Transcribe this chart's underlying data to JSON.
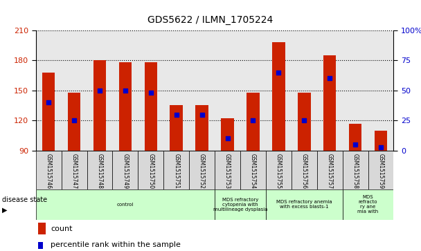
{
  "title": "GDS5622 / ILMN_1705224",
  "samples": [
    "GSM1515746",
    "GSM1515747",
    "GSM1515748",
    "GSM1515749",
    "GSM1515750",
    "GSM1515751",
    "GSM1515752",
    "GSM1515753",
    "GSM1515754",
    "GSM1515755",
    "GSM1515756",
    "GSM1515757",
    "GSM1515758",
    "GSM1515759"
  ],
  "counts": [
    168,
    148,
    180,
    178,
    178,
    135,
    135,
    122,
    148,
    198,
    148,
    185,
    117,
    110
  ],
  "percentiles": [
    40,
    25,
    50,
    50,
    48,
    30,
    30,
    10,
    25,
    65,
    25,
    60,
    5,
    3
  ],
  "ymin": 90,
  "ymax": 210,
  "y_ticks": [
    90,
    120,
    150,
    180,
    210
  ],
  "right_yticks": [
    0,
    25,
    50,
    75,
    100
  ],
  "bar_color": "#cc2200",
  "dot_color": "#0000cc",
  "disease_groups": [
    {
      "label": "control",
      "start": 0,
      "end": 7,
      "color": "#ccffcc"
    },
    {
      "label": "MDS refractory\ncytopenia with\nmultilineage dysplasia",
      "start": 7,
      "end": 9,
      "color": "#ccffcc"
    },
    {
      "label": "MDS refractory anemia\nwith excess blasts-1",
      "start": 9,
      "end": 12,
      "color": "#ccffcc"
    },
    {
      "label": "MDS\nrefracto\nry ane\nmia with",
      "start": 12,
      "end": 14,
      "color": "#ccffcc"
    }
  ],
  "bar_width": 0.5,
  "tick_label_color_left": "#cc2200",
  "tick_label_color_right": "#0000cc",
  "legend_count_label": "count",
  "legend_pct_label": "percentile rank within the sample",
  "plot_bg": "#e8e8e8",
  "disease_state_label": "disease state"
}
